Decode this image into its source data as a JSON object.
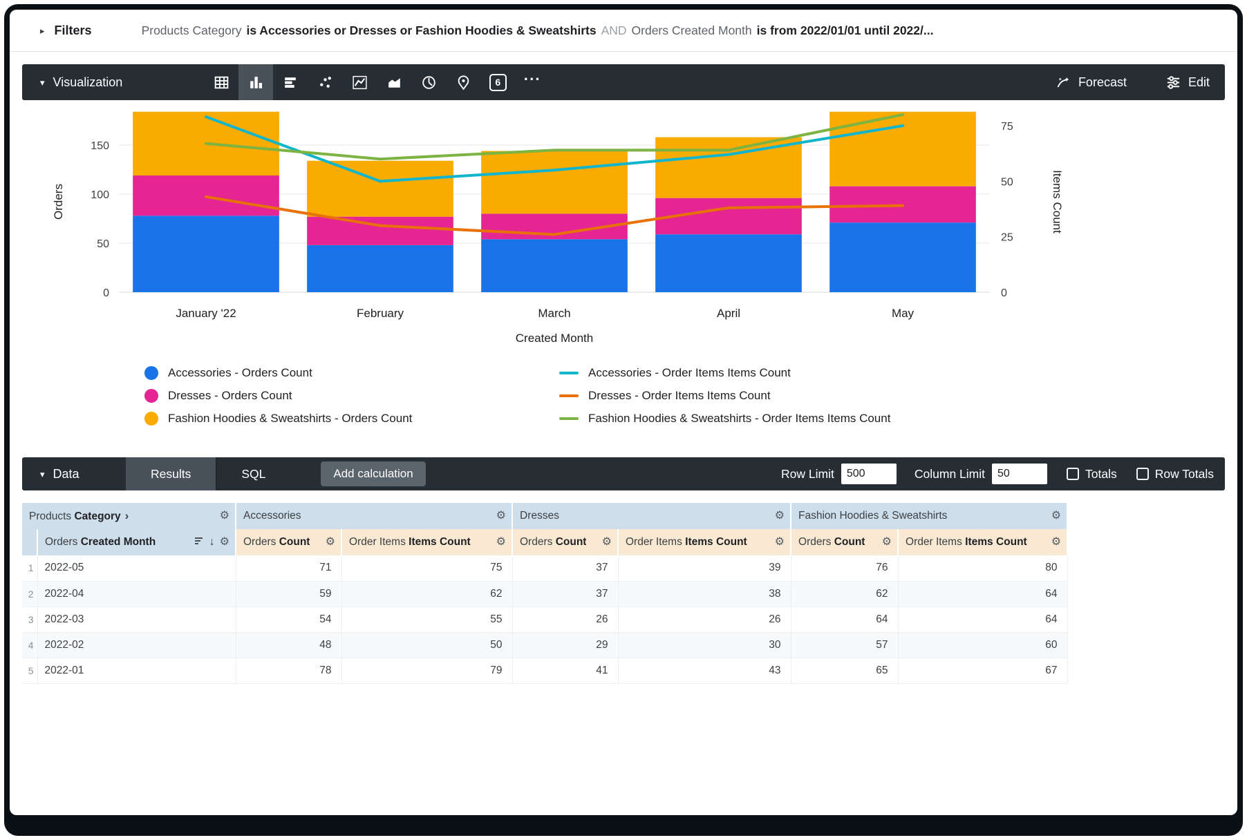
{
  "filters": {
    "label": "Filters",
    "segments": [
      {
        "text": "Products Category",
        "style": "field"
      },
      {
        "text": "is Accessories or Dresses or Fashion Hoodies & Sweatshirts",
        "style": "value"
      },
      {
        "text": "AND",
        "style": "conj"
      },
      {
        "text": "Orders Created Month",
        "style": "field"
      },
      {
        "text": "is from 2022/01/01 until 2022/...",
        "style": "value"
      }
    ]
  },
  "viz": {
    "label": "Visualization",
    "forecast_label": "Forecast",
    "edit_label": "Edit",
    "chart_types": [
      {
        "name": "table-chart-icon",
        "icon": "table",
        "selected": false
      },
      {
        "name": "column-chart-icon",
        "icon": "column",
        "selected": true
      },
      {
        "name": "bar-chart-icon",
        "icon": "bar",
        "selected": false
      },
      {
        "name": "scatter-chart-icon",
        "icon": "scatter",
        "selected": false
      },
      {
        "name": "line-chart-icon",
        "icon": "line",
        "selected": false
      },
      {
        "name": "area-chart-icon",
        "icon": "area",
        "selected": false
      },
      {
        "name": "pie-chart-icon",
        "icon": "pie",
        "selected": false
      },
      {
        "name": "map-chart-icon",
        "icon": "map",
        "selected": false
      },
      {
        "name": "single-value-icon",
        "icon": "single",
        "selected": false,
        "text": "6"
      },
      {
        "name": "more-chart-types-icon",
        "icon": "more",
        "selected": false
      }
    ]
  },
  "chart_data": {
    "type": "bar",
    "overlay_type": "line",
    "categories": [
      "January '22",
      "February",
      "March",
      "April",
      "May"
    ],
    "xlabel": "Created Month",
    "left_axis": {
      "label": "Orders",
      "ticks": [
        0,
        50,
        100,
        150
      ],
      "range": [
        0,
        192
      ]
    },
    "right_axis": {
      "label": "Items Count",
      "ticks": [
        0,
        25,
        50,
        75
      ],
      "range": [
        0,
        85
      ]
    },
    "bar_series": [
      {
        "name": "Accessories - Orders Count",
        "color": "#1a73e8",
        "values": [
          78,
          48,
          54,
          59,
          71
        ]
      },
      {
        "name": "Dresses - Orders Count",
        "color": "#e52592",
        "values": [
          41,
          29,
          26,
          37,
          37
        ]
      },
      {
        "name": "Fashion Hoodies & Sweatshirts - Orders Count",
        "color": "#f9ab00",
        "values": [
          65,
          57,
          64,
          62,
          76
        ]
      }
    ],
    "line_series": [
      {
        "name": "Accessories - Order Items Items Count",
        "color": "#12b5cb",
        "values": [
          79,
          50,
          55,
          62,
          75
        ]
      },
      {
        "name": "Dresses - Order Items Items Count",
        "color": "#e8710a",
        "values": [
          43,
          30,
          26,
          38,
          39
        ]
      },
      {
        "name": "Fashion Hoodies & Sweatshirts - Order Items Items Count",
        "color": "#7cb342",
        "values": [
          67,
          60,
          64,
          64,
          80
        ]
      }
    ],
    "grid": true,
    "legend_position": "bottom"
  },
  "data_panel": {
    "label": "Data",
    "tabs": [
      {
        "label": "Results",
        "selected": true
      },
      {
        "label": "SQL",
        "selected": false
      }
    ],
    "add_calculation_label": "Add calculation",
    "row_limit_label": "Row Limit",
    "row_limit_value": "500",
    "column_limit_label": "Column Limit",
    "column_limit_value": "50",
    "totals_label": "Totals",
    "totals_checked": false,
    "row_totals_label": "Row Totals",
    "row_totals_checked": false
  },
  "table": {
    "dimension_group": {
      "prefix": "Products",
      "bold": "Category"
    },
    "groups": [
      {
        "label": "Accessories"
      },
      {
        "label": "Dresses"
      },
      {
        "label": "Fashion Hoodies & Sweatshirts"
      }
    ],
    "dimension": {
      "prefix": "Orders",
      "bold": "Created Month"
    },
    "measure_headers": [
      {
        "prefix": "Orders",
        "bold": "Count"
      },
      {
        "prefix": "Order Items",
        "bold": "Items Count"
      }
    ],
    "rows": [
      {
        "num": 1,
        "dim": "2022-05",
        "values": [
          71,
          75,
          37,
          39,
          76,
          80
        ]
      },
      {
        "num": 2,
        "dim": "2022-04",
        "values": [
          59,
          62,
          37,
          38,
          62,
          64
        ]
      },
      {
        "num": 3,
        "dim": "2022-03",
        "values": [
          54,
          55,
          26,
          26,
          64,
          64
        ]
      },
      {
        "num": 4,
        "dim": "2022-02",
        "values": [
          48,
          50,
          29,
          30,
          57,
          60
        ]
      },
      {
        "num": 5,
        "dim": "2022-01",
        "values": [
          78,
          79,
          41,
          43,
          65,
          67
        ]
      }
    ]
  }
}
